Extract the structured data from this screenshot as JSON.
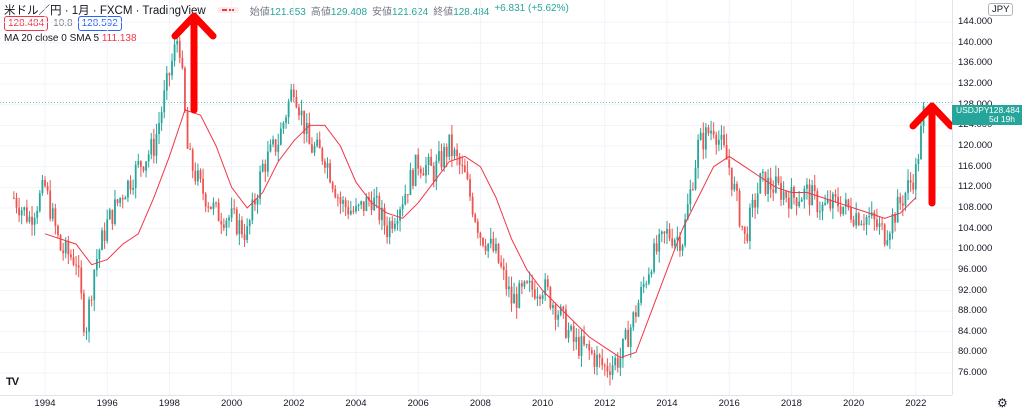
{
  "header": {
    "title": "米ドル／円 · 1月 · FXCM · TradingView",
    "ohlc": [
      {
        "label": "始値",
        "value": "121.653"
      },
      {
        "label": "高値",
        "value": "129.408"
      },
      {
        "label": "安値",
        "value": "121.624"
      },
      {
        "label": "終値",
        "value": "128.484"
      },
      {
        "label": "",
        "value": "+6.831 (+5.62%)"
      }
    ],
    "sell_price": "128.484",
    "spread": "10.8",
    "buy_price": "128.592",
    "indicator_label": "MA 20 close 0 SMA 5",
    "indicator_value": "111.138"
  },
  "price_axis": {
    "currency": "JPY",
    "last_symbol": "USDJPY",
    "last_price": "128.484",
    "countdown": "5d 19h"
  },
  "colors": {
    "up": "#26a69a",
    "down": "#ef5350",
    "ma": "#f23645",
    "arrow": "#ff0000",
    "grid": "#f0f3fa"
  },
  "chart_data": {
    "type": "candlestick",
    "title": "米ドル／円 1月 FXCM",
    "xlabel": "",
    "ylabel": "",
    "ylim": [
      74.5,
      146.5
    ],
    "y_ticks": [
      76,
      80,
      84,
      88,
      92,
      96,
      100,
      104,
      108,
      112,
      116,
      120,
      124,
      128,
      132,
      136,
      140,
      144
    ],
    "x_ticks": [
      "1994",
      "1996",
      "1998",
      "2000",
      "2002",
      "2004",
      "2006",
      "2008",
      "2010",
      "2012",
      "2014",
      "2016",
      "2018",
      "2020",
      "2022"
    ],
    "grid": true,
    "legend": "none",
    "series": [
      {
        "type": "close",
        "x": [
          1993.0,
          1993.5,
          1994.0,
          1994.5,
          1995.0,
          1995.3,
          1995.6,
          1996.0,
          1996.5,
          1997.0,
          1997.5,
          1998.0,
          1998.3,
          1998.6,
          1999.0,
          1999.5,
          2000.0,
          2000.5,
          2001.0,
          2001.5,
          2002.0,
          2002.5,
          2003.0,
          2003.5,
          2004.0,
          2004.5,
          2005.0,
          2005.5,
          2006.0,
          2006.5,
          2007.0,
          2007.5,
          2008.0,
          2008.5,
          2009.0,
          2009.5,
          2010.0,
          2010.5,
          2011.0,
          2011.5,
          2012.0,
          2012.5,
          2013.0,
          2013.5,
          2014.0,
          2014.5,
          2015.0,
          2015.5,
          2016.0,
          2016.5,
          2017.0,
          2017.5,
          2018.0,
          2018.5,
          2019.0,
          2019.5,
          2020.0,
          2020.5,
          2021.0,
          2021.5,
          2022.0,
          2022.3
        ],
        "values": [
          110,
          106,
          112,
          100,
          98,
          84,
          97,
          105,
          111,
          116,
          120,
          134,
          142,
          118,
          112,
          107,
          106,
          103,
          116,
          121,
          132,
          120,
          118,
          109,
          107,
          110,
          104,
          110,
          117,
          115,
          120,
          114,
          103,
          99,
          90,
          92,
          93,
          88,
          82,
          80,
          77,
          79,
          88,
          98,
          103,
          102,
          120,
          124,
          116,
          102,
          113,
          112,
          110,
          111,
          108,
          109,
          107,
          106,
          103,
          109,
          115,
          128.5
        ]
      },
      {
        "type": "ma",
        "name": "MA 20 close 0 SMA 5",
        "x": [
          1994.0,
          1995.0,
          1995.5,
          1996.0,
          1996.5,
          1997.0,
          1997.5,
          1998.0,
          1998.5,
          1999.0,
          1999.5,
          2000.0,
          2000.5,
          2001.0,
          2001.5,
          2002.0,
          2002.5,
          2003.0,
          2003.5,
          2004.0,
          2004.5,
          2005.0,
          2005.5,
          2006.0,
          2006.5,
          2007.0,
          2007.5,
          2008.0,
          2008.5,
          2009.0,
          2009.5,
          2010.0,
          2010.5,
          2011.0,
          2011.5,
          2012.0,
          2012.5,
          2013.0,
          2013.5,
          2014.0,
          2014.5,
          2015.0,
          2015.5,
          2016.0,
          2016.5,
          2017.0,
          2017.5,
          2018.0,
          2018.5,
          2019.0,
          2019.5,
          2020.0,
          2020.5,
          2021.0,
          2021.5,
          2022.0
        ],
        "values": [
          103,
          101,
          97,
          98,
          101,
          103,
          110,
          118,
          127,
          126,
          120,
          112,
          108,
          111,
          117,
          121,
          124,
          124,
          120,
          113,
          109,
          107,
          106,
          109,
          113,
          117,
          118,
          116,
          110,
          102,
          96,
          92,
          89,
          86,
          83,
          81,
          79,
          80,
          88,
          96,
          104,
          110,
          116,
          118,
          116,
          114,
          112,
          111,
          111,
          110,
          109,
          108,
          107,
          106,
          107,
          110
        ]
      }
    ],
    "annotations": [
      "red up arrow near 1998 peak",
      "red up arrow at 2022 latest price"
    ]
  }
}
